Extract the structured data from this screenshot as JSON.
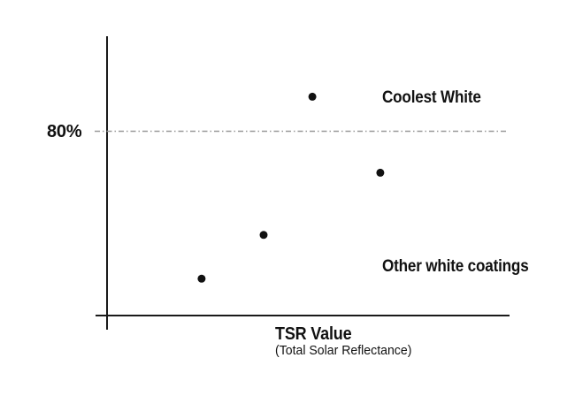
{
  "chart_data": {
    "type": "scatter",
    "title": "",
    "xlabel": "TSR Value",
    "xlabel_sub": "(Total Solar Reflectance)",
    "ylabel": "",
    "y_unit": "percent (TSR)",
    "ylim": [
      0,
      120
    ],
    "x_ticks": [],
    "grid": false,
    "legend_position": "none",
    "threshold": {
      "value": 80,
      "label": "80%",
      "style": "dash-dot"
    },
    "points": [
      {
        "x_rel": 0.51,
        "y_pct": 95,
        "group": "Coolest White"
      },
      {
        "x_rel": 0.679,
        "y_pct": 62,
        "group": "Other white coatings"
      },
      {
        "x_rel": 0.389,
        "y_pct": 35,
        "group": "Other white coatings"
      },
      {
        "x_rel": 0.235,
        "y_pct": 16,
        "group": "Other white coatings"
      }
    ],
    "annotations": [
      {
        "text": "Coolest White"
      },
      {
        "text": "Other white coatings"
      }
    ],
    "colors": {
      "background": "#ffffff",
      "point": "#111111",
      "axis": "#1a1a1a",
      "threshold_line": "#999999",
      "text": "#111111"
    }
  }
}
